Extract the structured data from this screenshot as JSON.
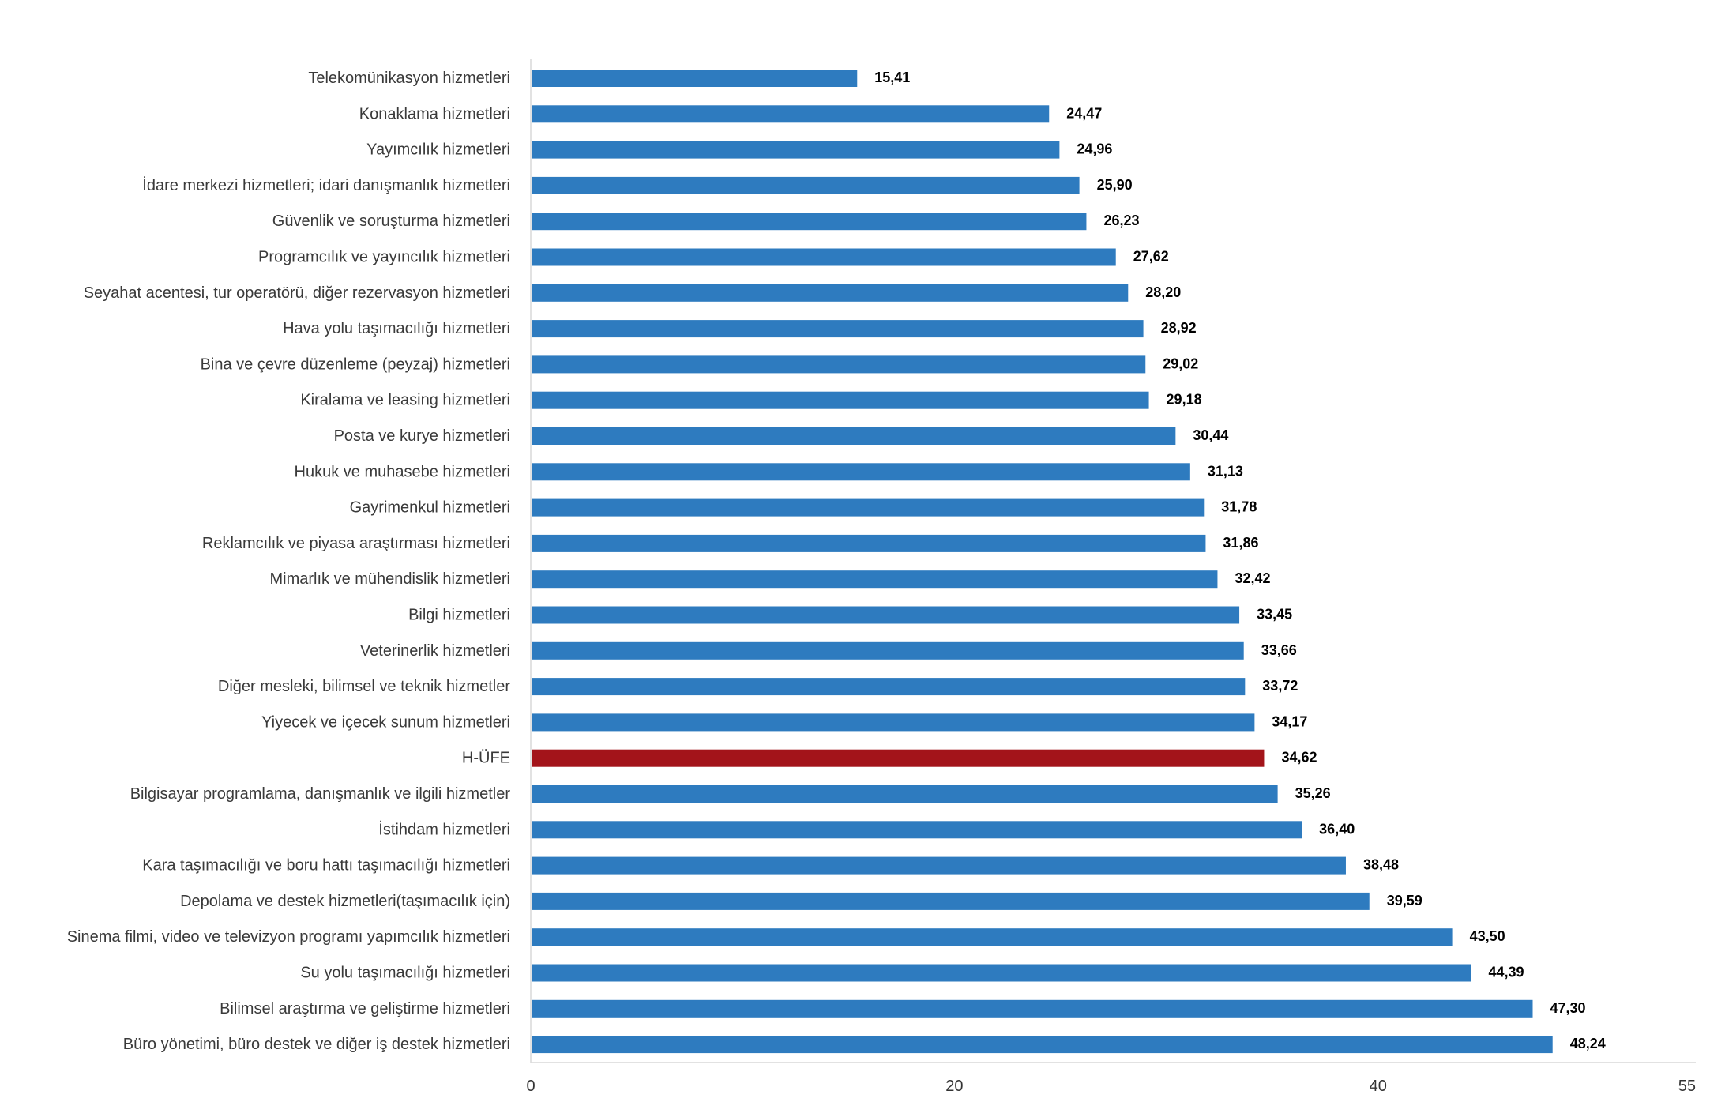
{
  "chart_data": {
    "type": "bar",
    "orientation": "horizontal",
    "title": "",
    "xlabel": "",
    "ylabel": "",
    "xlim": [
      0,
      55
    ],
    "ticks": [
      0,
      20,
      40,
      55
    ],
    "tick_labels": [
      "0",
      "20",
      "40",
      "55"
    ],
    "grid": false,
    "legend": "none",
    "colors": {
      "default": "#2e7bbf",
      "highlight": "#a3141a"
    },
    "highlight_category": "H-ÜFE",
    "categories": [
      "Telekomünikasyon hizmetleri",
      "Konaklama hizmetleri",
      "Yayımcılık hizmetleri",
      "İdare merkezi hizmetleri; idari danışmanlık hizmetleri",
      "Güvenlik ve soruşturma hizmetleri",
      "Programcılık ve yayıncılık hizmetleri",
      "Seyahat acentesi, tur operatörü, diğer rezervasyon hizmetleri",
      "Hava yolu taşımacılığı hizmetleri",
      "Bina ve çevre düzenleme (peyzaj) hizmetleri",
      "Kiralama ve leasing hizmetleri",
      "Posta ve kurye hizmetleri",
      "Hukuk ve muhasebe hizmetleri",
      "Gayrimenkul hizmetleri",
      "Reklamcılık ve piyasa araştırması hizmetleri",
      "Mimarlık ve mühendislik hizmetleri",
      "Bilgi hizmetleri",
      "Veterinerlik hizmetleri",
      "Diğer mesleki, bilimsel ve teknik hizmetler",
      "Yiyecek ve içecek sunum hizmetleri",
      "H-ÜFE",
      "Bilgisayar programlama, danışmanlık ve ilgili hizmetler",
      "İstihdam hizmetleri",
      "Kara taşımacılığı ve boru hattı taşımacılığı hizmetleri",
      "Depolama ve destek hizmetleri(taşımacılık için)",
      "Sinema filmi, video ve televizyon programı yapımcılık hizmetleri",
      "Su yolu taşımacılığı hizmetleri",
      "Bilimsel araştırma ve geliştirme hizmetleri",
      "Büro yönetimi, büro destek ve diğer iş destek hizmetleri"
    ],
    "values": [
      15.41,
      24.47,
      24.96,
      25.9,
      26.23,
      27.62,
      28.2,
      28.92,
      29.02,
      29.18,
      30.44,
      31.13,
      31.78,
      31.86,
      32.42,
      33.45,
      33.66,
      33.72,
      34.17,
      34.62,
      35.26,
      36.4,
      38.48,
      39.59,
      43.5,
      44.39,
      47.3,
      48.24
    ],
    "value_labels": [
      "15,41",
      "24,47",
      "24,96",
      "25,90",
      "26,23",
      "27,62",
      "28,20",
      "28,92",
      "29,02",
      "29,18",
      "30,44",
      "31,13",
      "31,78",
      "31,86",
      "32,42",
      "33,45",
      "33,66",
      "33,72",
      "34,17",
      "34,62",
      "35,26",
      "36,40",
      "38,48",
      "39,59",
      "43,50",
      "44,39",
      "47,30",
      "48,24"
    ]
  }
}
